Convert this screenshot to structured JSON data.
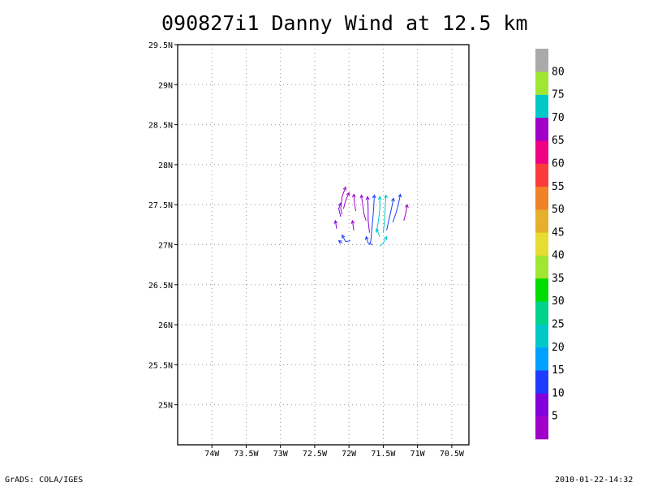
{
  "title": "090827i1 Danny Wind at 12.5 km",
  "footer": {
    "left": "GrADS: COLA/IGES",
    "right": "2010-01-22-14:32"
  },
  "map": {
    "lon_range": [
      -74.5,
      -70.25
    ],
    "lat_range": [
      24.5,
      29.5
    ],
    "lon_ticks": [
      {
        "value": -74.0,
        "label": "74W"
      },
      {
        "value": -73.5,
        "label": "73.5W"
      },
      {
        "value": -73.0,
        "label": "73W"
      },
      {
        "value": -72.5,
        "label": "72.5W"
      },
      {
        "value": -72.0,
        "label": "72W"
      },
      {
        "value": -71.5,
        "label": "71.5W"
      },
      {
        "value": -71.0,
        "label": "71W"
      },
      {
        "value": -70.5,
        "label": "70.5W"
      }
    ],
    "lat_ticks": [
      {
        "value": 29.5,
        "label": "29.5N"
      },
      {
        "value": 29.0,
        "label": "29N"
      },
      {
        "value": 28.5,
        "label": "28.5N"
      },
      {
        "value": 28.0,
        "label": "28N"
      },
      {
        "value": 27.5,
        "label": "27.5N"
      },
      {
        "value": 27.0,
        "label": "27N"
      },
      {
        "value": 26.5,
        "label": "26.5N"
      },
      {
        "value": 26.0,
        "label": "26N"
      },
      {
        "value": 25.5,
        "label": "25.5N"
      },
      {
        "value": 25.0,
        "label": "25N"
      }
    ],
    "grid": "dotted"
  },
  "colorbar": {
    "labels": [
      "5",
      "10",
      "15",
      "20",
      "25",
      "30",
      "35",
      "40",
      "45",
      "50",
      "55",
      "60",
      "65",
      "70",
      "75",
      "80"
    ],
    "colors": [
      "#a000c8",
      "#8200dc",
      "#1e3cff",
      "#00a0ff",
      "#00c8c8",
      "#00d28c",
      "#00dc00",
      "#a0e632",
      "#e6dc32",
      "#e6af2d",
      "#f08228",
      "#fa3c3c",
      "#f00082",
      "#a000c8",
      "#00c8c8",
      "#a0e632",
      "#aaaaaa"
    ]
  },
  "wind_streamlines": [
    {
      "color": "#a000c8",
      "points": [
        [
          -72.05,
          27.72
        ],
        [
          -72.1,
          27.6
        ],
        [
          -72.12,
          27.45
        ],
        [
          -72.1,
          27.38
        ]
      ]
    },
    {
      "color": "#a000c8",
      "points": [
        [
          -72.0,
          27.65
        ],
        [
          -72.05,
          27.55
        ],
        [
          -72.08,
          27.45
        ]
      ]
    },
    {
      "color": "#8200dc",
      "points": [
        [
          -72.12,
          27.52
        ],
        [
          -72.15,
          27.45
        ],
        [
          -72.12,
          27.35
        ]
      ]
    },
    {
      "color": "#a000c8",
      "points": [
        [
          -71.93,
          27.63
        ],
        [
          -71.92,
          27.52
        ],
        [
          -71.9,
          27.42
        ]
      ]
    },
    {
      "color": "#a000c8",
      "points": [
        [
          -71.82,
          27.62
        ],
        [
          -71.8,
          27.5
        ],
        [
          -71.78,
          27.38
        ],
        [
          -71.75,
          27.3
        ]
      ]
    },
    {
      "color": "#8200dc",
      "points": [
        [
          -71.73,
          27.6
        ],
        [
          -71.72,
          27.45
        ],
        [
          -71.72,
          27.3
        ],
        [
          -71.7,
          27.15
        ]
      ]
    },
    {
      "color": "#1e3cff",
      "points": [
        [
          -71.63,
          27.62
        ],
        [
          -71.64,
          27.45
        ],
        [
          -71.66,
          27.25
        ],
        [
          -71.68,
          27.05
        ],
        [
          -71.7,
          27.0
        ]
      ]
    },
    {
      "color": "#00c8c8",
      "points": [
        [
          -71.55,
          27.6
        ],
        [
          -71.55,
          27.45
        ],
        [
          -71.57,
          27.3
        ],
        [
          -71.6,
          27.15
        ]
      ]
    },
    {
      "color": "#00c8c8",
      "points": [
        [
          -71.46,
          27.62
        ],
        [
          -71.47,
          27.48
        ],
        [
          -71.48,
          27.3
        ],
        [
          -71.5,
          27.15
        ]
      ]
    },
    {
      "color": "#1e3cff",
      "points": [
        [
          -71.35,
          27.58
        ],
        [
          -71.38,
          27.45
        ],
        [
          -71.42,
          27.3
        ],
        [
          -71.45,
          27.18
        ]
      ]
    },
    {
      "color": "#1e3cff",
      "points": [
        [
          -71.25,
          27.63
        ],
        [
          -71.28,
          27.5
        ],
        [
          -71.32,
          27.38
        ],
        [
          -71.36,
          27.28
        ]
      ]
    },
    {
      "color": "#a000c8",
      "points": [
        [
          -71.15,
          27.5
        ],
        [
          -71.17,
          27.4
        ],
        [
          -71.2,
          27.3
        ]
      ]
    },
    {
      "color": "#8200dc",
      "points": [
        [
          -72.2,
          27.3
        ],
        [
          -72.18,
          27.2
        ]
      ]
    },
    {
      "color": "#a000c8",
      "points": [
        [
          -71.95,
          27.3
        ],
        [
          -71.93,
          27.18
        ]
      ]
    },
    {
      "color": "#1e3cff",
      "points": [
        [
          -72.1,
          27.12
        ],
        [
          -72.05,
          27.04
        ],
        [
          -71.98,
          27.05
        ]
      ]
    },
    {
      "color": "#1e3cff",
      "points": [
        [
          -72.15,
          27.05
        ],
        [
          -72.1,
          27.02
        ]
      ]
    },
    {
      "color": "#1e3cff",
      "points": [
        [
          -71.75,
          27.1
        ],
        [
          -71.72,
          27.02
        ],
        [
          -71.65,
          27.0
        ]
      ]
    },
    {
      "color": "#00c8c8",
      "points": [
        [
          -71.45,
          27.1
        ],
        [
          -71.5,
          27.02
        ],
        [
          -71.55,
          26.98
        ]
      ]
    },
    {
      "color": "#00c8c8",
      "points": [
        [
          -71.6,
          27.2
        ],
        [
          -71.55,
          27.1
        ]
      ]
    }
  ]
}
